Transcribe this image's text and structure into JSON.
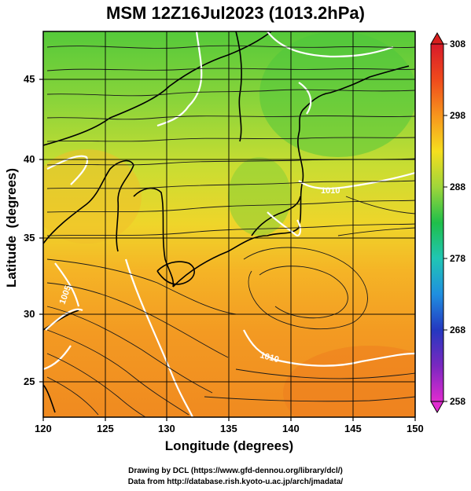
{
  "title": "MSM 12Z16Jul2023 (1013.2hPa)",
  "axes": {
    "xlabel": "Longitude (degrees)",
    "ylabel": "Latitude  (degrees)",
    "xticks": [
      "120",
      "125",
      "130",
      "135",
      "140",
      "145",
      "150"
    ],
    "yticks": [
      "45",
      "40",
      "35",
      "30",
      "25"
    ]
  },
  "colorbar": {
    "labels": [
      "308",
      "298",
      "288",
      "278",
      "268",
      "258"
    ],
    "colors": [
      "#d81a6a",
      "#e8401c",
      "#f7941d",
      "#f6e91e",
      "#6fce36",
      "#1fbf4a",
      "#22b8c9",
      "#1f6fd8",
      "#2b2fb8",
      "#9a2cc8",
      "#e02bd0"
    ]
  },
  "contour_labels": [
    "1010",
    "1010",
    "1005"
  ],
  "credits": {
    "line1": "Drawing by DCL (https://www.gfd-dennou.org/library/dcl/)",
    "line2": "Data from http://database.rish.kyoto-u.ac.jp/arch/jmadata/"
  }
}
